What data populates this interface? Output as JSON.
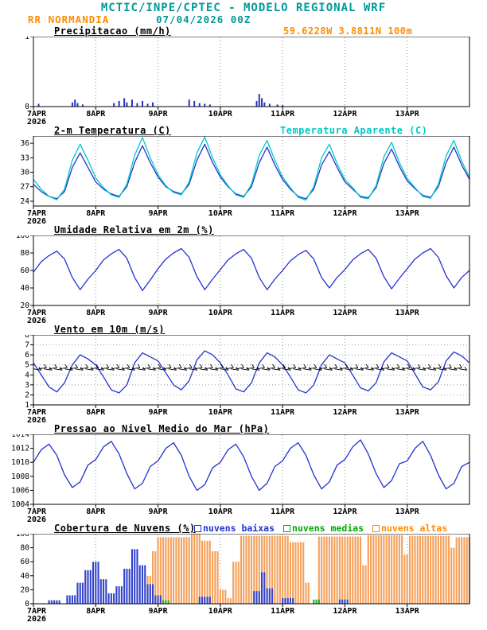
{
  "header": {
    "title": "MCTIC/INPE/CPTEC - MODELO REGIONAL WRF",
    "station": "RR NORMANDIA",
    "run": "07/04/2026 00Z",
    "location": "59.6228W 3.8811N 100m"
  },
  "x_axis": {
    "ticks": [
      "7APR",
      "8APR",
      "9APR",
      "10APR",
      "11APR",
      "12APR",
      "13APR"
    ],
    "year": "2026",
    "hours_total": 168
  },
  "colors": {
    "teal": "#009999",
    "orange": "#ff8c00",
    "line_blue": "#2233cc",
    "cyan": "#00c8c8",
    "green": "#00aa00",
    "cloud_high_fill": "#f5a05a"
  },
  "chart_data": [
    {
      "id": "precipitation",
      "type": "bars",
      "title": "Precipitacao (mm/h)",
      "ylabel": "mm/h",
      "ylim": [
        0,
        1
      ],
      "yticks": [
        0,
        1
      ],
      "bar_color": "#2233cc",
      "bars": [
        [
          2,
          0.04
        ],
        [
          15,
          0.06
        ],
        [
          16,
          0.1
        ],
        [
          17,
          0.05
        ],
        [
          19,
          0.03
        ],
        [
          31,
          0.05
        ],
        [
          33,
          0.08
        ],
        [
          35,
          0.12
        ],
        [
          36,
          0.06
        ],
        [
          38,
          0.1
        ],
        [
          40,
          0.05
        ],
        [
          42,
          0.08
        ],
        [
          44,
          0.04
        ],
        [
          46,
          0.06
        ],
        [
          60,
          0.1
        ],
        [
          62,
          0.08
        ],
        [
          64,
          0.05
        ],
        [
          66,
          0.04
        ],
        [
          68,
          0.03
        ],
        [
          86,
          0.08
        ],
        [
          87,
          0.18
        ],
        [
          88,
          0.12
        ],
        [
          89,
          0.06
        ],
        [
          91,
          0.04
        ],
        [
          94,
          0.03
        ],
        [
          96,
          0.02
        ]
      ]
    },
    {
      "id": "temperature",
      "type": "lines",
      "title": "2-m Temperatura (C)",
      "legend": {
        "label": "Temperatura Aparente (C)",
        "color": "#00c8c8"
      },
      "ylim": [
        23,
        37.5
      ],
      "yticks": [
        24,
        27,
        30,
        33,
        36
      ],
      "series": [
        {
          "name": "2-m Temperatura",
          "color": "#2233cc",
          "step_h": 3,
          "values": [
            27.5,
            26,
            25,
            24.5,
            26,
            31,
            34,
            31,
            28,
            26.5,
            25.5,
            25,
            27,
            32,
            35.5,
            32,
            29,
            27,
            26,
            25.5,
            27.5,
            32.5,
            35.8,
            32,
            29,
            27,
            25.5,
            25,
            27,
            32,
            35.2,
            31.5,
            28.5,
            26.5,
            25,
            24.5,
            26.5,
            31.5,
            34.3,
            31,
            28,
            26.5,
            25,
            24.7,
            26.8,
            31.8,
            34.8,
            31.2,
            28.2,
            26.6,
            25.2,
            24.8,
            27,
            32,
            35.2,
            31.5,
            28.5
          ]
        },
        {
          "name": "Temperatura Aparente",
          "color": "#00c8c8",
          "step_h": 3,
          "values": [
            28.5,
            26.5,
            25,
            24.3,
            26.5,
            32.5,
            35.8,
            32.5,
            28.8,
            26.8,
            25.3,
            24.8,
            27.5,
            33.5,
            37.2,
            33,
            29.5,
            27.2,
            25.8,
            25.3,
            28,
            34,
            37.3,
            33,
            29.5,
            27.2,
            25.3,
            24.8,
            27.5,
            33.5,
            36.6,
            32.5,
            29,
            26.8,
            24.8,
            24.2,
            27,
            33,
            35.8,
            31.8,
            28.5,
            26.8,
            24.8,
            24.5,
            27.2,
            33.2,
            36.2,
            32,
            28.7,
            26.8,
            25,
            24.6,
            27.5,
            33.4,
            36.6,
            32.3,
            29
          ]
        }
      ]
    },
    {
      "id": "humidity",
      "type": "lines",
      "title": "Umidade Relativa em 2m (%)",
      "ylim": [
        20,
        100
      ],
      "yticks": [
        20,
        40,
        60,
        80,
        100
      ],
      "series": [
        {
          "name": "Umidade Relativa",
          "color": "#2233cc",
          "step_h": 3,
          "values": [
            58,
            70,
            77,
            82,
            73,
            52,
            38,
            50,
            60,
            72,
            79,
            84,
            74,
            52,
            37,
            49,
            62,
            73,
            80,
            85,
            75,
            53,
            38,
            50,
            61,
            72,
            79,
            84,
            74,
            52,
            38,
            50,
            60,
            71,
            78,
            83,
            73,
            52,
            40,
            52,
            61,
            72,
            79,
            84,
            74,
            53,
            39,
            51,
            62,
            73,
            80,
            85,
            75,
            54,
            40,
            52,
            60
          ]
        }
      ]
    },
    {
      "id": "wind",
      "type": "lines",
      "title": "Vento em 10m (m/s)",
      "ylim": [
        1,
        8
      ],
      "yticks": [
        1,
        2,
        3,
        4,
        5,
        6,
        7,
        8
      ],
      "hgrid": true,
      "barbs": {
        "step_h": 2,
        "value": 4.6,
        "dir": "E"
      },
      "series": [
        {
          "name": "Vento 10m",
          "color": "#2233cc",
          "step_h": 3,
          "values": [
            5.2,
            4.0,
            2.8,
            2.3,
            3.2,
            5.0,
            6.0,
            5.6,
            5.0,
            3.8,
            2.5,
            2.2,
            3.0,
            5.2,
            6.2,
            5.8,
            5.4,
            4.2,
            3.0,
            2.5,
            3.4,
            5.5,
            6.4,
            6.0,
            5.2,
            4.0,
            2.6,
            2.3,
            3.2,
            5.2,
            6.2,
            5.8,
            5.0,
            3.8,
            2.5,
            2.2,
            3.0,
            5.0,
            6.0,
            5.6,
            5.2,
            4.0,
            2.7,
            2.4,
            3.2,
            5.3,
            6.2,
            5.8,
            5.4,
            4.1,
            2.8,
            2.5,
            3.3,
            5.4,
            6.3,
            5.9,
            5.2
          ]
        }
      ]
    },
    {
      "id": "pressure",
      "type": "lines",
      "title": "Pressao ao Nivel Medio do Mar (hPa)",
      "ylim": [
        1004,
        1014
      ],
      "yticks": [
        1004,
        1006,
        1008,
        1010,
        1012,
        1014
      ],
      "series": [
        {
          "name": "Pressao",
          "color": "#2233cc",
          "step_h": 3,
          "values": [
            1010.0,
            1011.8,
            1012.6,
            1011.0,
            1008.2,
            1006.4,
            1007.2,
            1009.6,
            1010.4,
            1012.2,
            1013.0,
            1011.2,
            1008.4,
            1006.2,
            1007.0,
            1009.4,
            1010.2,
            1012.0,
            1012.8,
            1011.0,
            1008.0,
            1006.0,
            1006.8,
            1009.2,
            1010.0,
            1011.8,
            1012.6,
            1010.8,
            1008.0,
            1006.0,
            1007.0,
            1009.4,
            1010.2,
            1012.0,
            1012.8,
            1011.0,
            1008.2,
            1006.2,
            1007.2,
            1009.6,
            1010.4,
            1012.2,
            1013.2,
            1011.2,
            1008.4,
            1006.4,
            1007.4,
            1009.8,
            1010.2,
            1012.0,
            1013.0,
            1011.0,
            1008.2,
            1006.2,
            1007.0,
            1009.4,
            1010.0
          ]
        }
      ]
    },
    {
      "id": "clouds",
      "type": "cloudbars",
      "title": "Cobertura de Nuvens (%)",
      "legend_items": [
        {
          "label": "nuvens baixas",
          "color": "#2233cc"
        },
        {
          "label": "nuvens medias",
          "color": "#00aa00"
        },
        {
          "label": "nuvens altas",
          "color": "#ff8c00"
        }
      ],
      "ylim": [
        0,
        100
      ],
      "yticks": [
        0,
        20,
        40,
        60,
        80,
        100
      ],
      "series": [
        {
          "name": "nuvens altas",
          "color": "#f5a05a",
          "segments": [
            [
              44,
              45,
              40
            ],
            [
              46,
              47,
              75
            ],
            [
              48,
              60,
              95
            ],
            [
              61,
              64,
              100
            ],
            [
              65,
              68,
              90
            ],
            [
              69,
              71,
              75
            ],
            [
              72,
              74,
              20
            ],
            [
              75,
              76,
              8
            ],
            [
              77,
              79,
              60
            ],
            [
              80,
              98,
              97
            ],
            [
              99,
              104,
              88
            ],
            [
              105,
              106,
              30
            ],
            [
              110,
              126,
              96
            ],
            [
              127,
              128,
              55
            ],
            [
              129,
              142,
              98
            ],
            [
              143,
              144,
              70
            ],
            [
              145,
              160,
              97
            ],
            [
              161,
              162,
              80
            ],
            [
              163,
              168,
              95
            ]
          ]
        },
        {
          "name": "nuvens medias",
          "color": "#1faa1f",
          "segments": [
            [
              50,
              52,
              5
            ],
            [
              108,
              110,
              6
            ]
          ]
        },
        {
          "name": "nuvens baixas",
          "color": "#3344cc",
          "segments": [
            [
              6,
              10,
              5
            ],
            [
              13,
              16,
              12
            ],
            [
              17,
              19,
              30
            ],
            [
              20,
              22,
              48
            ],
            [
              23,
              25,
              60
            ],
            [
              26,
              28,
              35
            ],
            [
              29,
              31,
              15
            ],
            [
              32,
              34,
              25
            ],
            [
              35,
              37,
              50
            ],
            [
              38,
              40,
              78
            ],
            [
              41,
              43,
              55
            ],
            [
              44,
              46,
              28
            ],
            [
              47,
              49,
              12
            ],
            [
              64,
              68,
              10
            ],
            [
              85,
              87,
              18
            ],
            [
              88,
              89,
              45
            ],
            [
              90,
              92,
              22
            ],
            [
              96,
              100,
              8
            ],
            [
              118,
              121,
              6
            ]
          ]
        }
      ]
    }
  ]
}
